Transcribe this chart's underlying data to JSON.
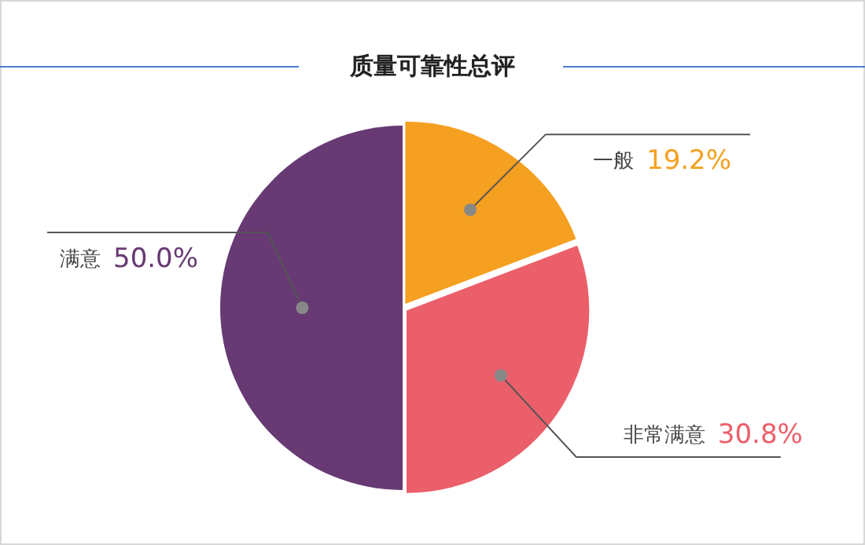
{
  "chart_data": {
    "type": "pie",
    "title": "质量可靠性总评",
    "categories": [
      "一般",
      "非常满意",
      "满意"
    ],
    "values": [
      19.2,
      30.8,
      50.0
    ],
    "colors": [
      "#f5a020",
      "#eb5f6a",
      "#673a74"
    ],
    "value_labels": [
      "19.2%",
      "30.8%",
      "50.0%"
    ]
  }
}
